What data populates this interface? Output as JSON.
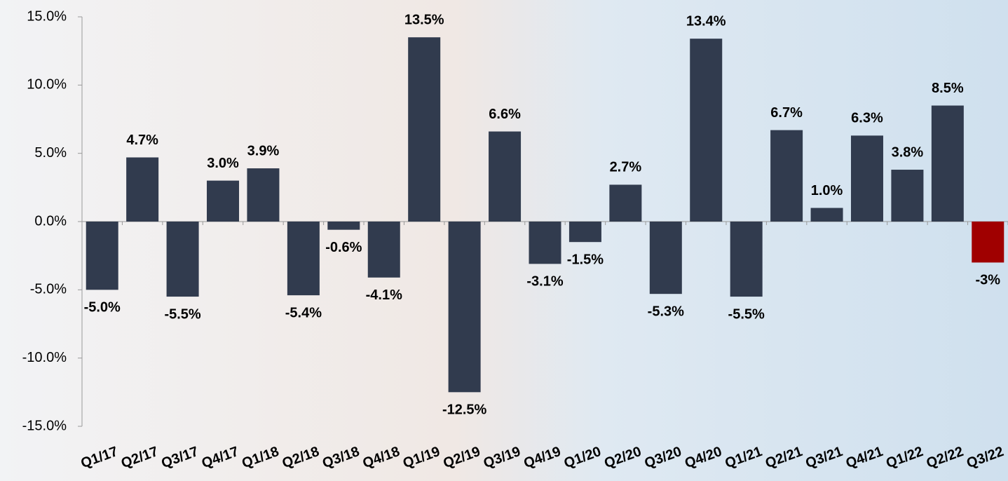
{
  "chart_data": {
    "type": "bar",
    "categories": [
      "Q1/17",
      "Q2/17",
      "Q3/17",
      "Q4/17",
      "Q1/18",
      "Q2/18",
      "Q3/18",
      "Q4/18",
      "Q1/19",
      "Q2/19",
      "Q3/19",
      "Q4/19",
      "Q1/20",
      "Q2/20",
      "Q3/20",
      "Q4/20",
      "Q1/21",
      "Q2/21",
      "Q3/21",
      "Q4/21",
      "Q1/22",
      "Q2/22",
      "Q3/22"
    ],
    "values": [
      -5.0,
      4.7,
      -5.5,
      3.0,
      3.9,
      -5.4,
      -0.6,
      -4.1,
      13.5,
      -12.5,
      6.6,
      -3.1,
      -1.5,
      2.7,
      -5.3,
      13.4,
      -5.5,
      6.7,
      1.0,
      6.3,
      3.8,
      8.5,
      -3
    ],
    "value_labels": [
      "-5.0%",
      "4.7%",
      "-5.5%",
      "3.0%",
      "3.9%",
      "-5.4%",
      "-0.6%",
      "-4.1%",
      "13.5%",
      "-12.5%",
      "6.6%",
      "-3.1%",
      "-1.5%",
      "2.7%",
      "-5.3%",
      "13.4%",
      "-5.5%",
      "6.7%",
      "1.0%",
      "6.3%",
      "3.8%",
      "8.5%",
      "-3%"
    ],
    "colors": [
      "#313b4e",
      "#313b4e",
      "#313b4e",
      "#313b4e",
      "#313b4e",
      "#313b4e",
      "#313b4e",
      "#313b4e",
      "#313b4e",
      "#313b4e",
      "#313b4e",
      "#313b4e",
      "#313b4e",
      "#313b4e",
      "#313b4e",
      "#313b4e",
      "#313b4e",
      "#313b4e",
      "#313b4e",
      "#313b4e",
      "#313b4e",
      "#313b4e",
      "#a00000"
    ],
    "ylim": [
      -15,
      15
    ],
    "yticks": [
      {
        "value": -15,
        "label": "-15.0%"
      },
      {
        "value": -10,
        "label": "-10.0%"
      },
      {
        "value": -5,
        "label": "-5.0%"
      },
      {
        "value": 0,
        "label": "0.0%"
      },
      {
        "value": 5,
        "label": "5.0%"
      },
      {
        "value": 10,
        "label": "10.0%"
      },
      {
        "value": 15,
        "label": "15.0%"
      }
    ]
  }
}
